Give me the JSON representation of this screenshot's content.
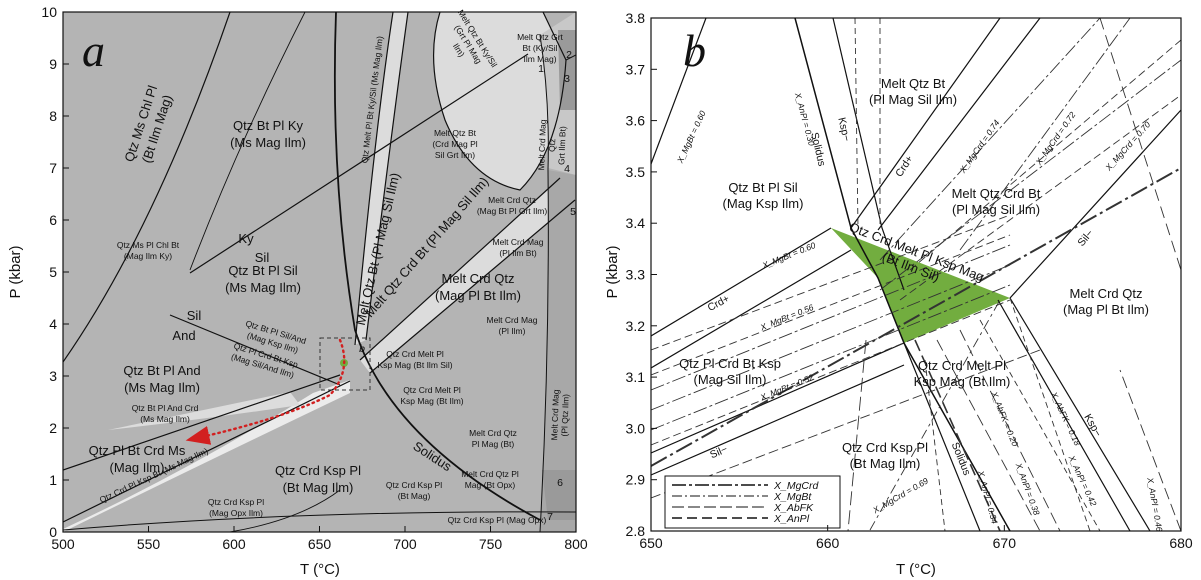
{
  "panel_a": {
    "letter": "a",
    "x_axis": {
      "label": "T (°C)",
      "ticks": [
        "500",
        "550",
        "600",
        "650",
        "700",
        "750",
        "800"
      ]
    },
    "y_axis": {
      "label": "P (kbar)",
      "ticks": [
        "0",
        "1",
        "2",
        "3",
        "4",
        "5",
        "6",
        "7",
        "8",
        "9",
        "10"
      ]
    },
    "fields": {
      "f1": [
        "Qtz Ms Chl Pl",
        "(Bt Ilm Mag)"
      ],
      "f2": [
        "Qtz Bt Pl Ky",
        "(Ms Mag Ilm)"
      ],
      "f3": [
        "Qtz Bt Pl Sil",
        "(Ms Mag Ilm)"
      ],
      "f4": [
        "Qtz Bt Pl And",
        "(Ms Mag Ilm)"
      ],
      "f5": [
        "Qtz Pl Bt Crd Ms",
        "(Mag Ilm)"
      ],
      "f6": [
        "Qtz Crd Ksp Pl",
        "(Bt Mag Ilm)"
      ],
      "f7": [
        "Melt Crd Qtz",
        "(Mag Pl Bt Ilm)"
      ],
      "f8": "Melt Qtz Bt (Pl Mag Sil Ilm)",
      "f9": "Melt Qtz Crd Bt (Pl Mag Sil Ilm)",
      "f10": "Qtz Melt Pl Bt Ky/Sil (Ms Mag Ilm)",
      "s1": [
        "Qtz Ms Pl Chl Bt",
        "(Mag Ilm Ky)"
      ],
      "s2": [
        "Qtz Bt Pl And Crd",
        "(Ms Mag Ilm)"
      ],
      "s3": [
        "Qtz Bt Pl Sil/And",
        "(Mag Ksp Ilm)"
      ],
      "s4": [
        "Qtz Pl Crd Bt Ksp",
        "(Mag Sil/And Ilm)"
      ],
      "s5": [
        "Qtz Crd Melt Pl",
        "Ksp Mag (Bt Ilm Sil)"
      ],
      "s6": [
        "Qtz Crd Melt Pl",
        "Ksp Mag (Bt Ilm)"
      ],
      "s7": [
        "Melt Qtz Bt",
        "(Crd Mag Pl",
        "Sil Grt Ilm)"
      ],
      "s8": [
        "Melt Qtz Bt Ky/Sil",
        "(Grt Pl Mag",
        "Ilm)"
      ],
      "s9": [
        "Melt Qtz Grt",
        "Bt (Ky/Sil",
        "Ilm Mag)"
      ],
      "s10": [
        "Melt Crd Mag",
        "Qtz",
        "Grt Ilm Bt)"
      ],
      "s11": [
        "Melt Crd Qtz",
        "(Mag Bt Pl Grt Ilm)"
      ],
      "s12": [
        "Melt Crd Mag",
        "(Pl Ilm Bt)"
      ],
      "s13": [
        "Melt Crd Mag",
        "(Pl Ilm)"
      ],
      "s14": [
        "Melt Crd Qtz",
        "Pl Mag (Bt)"
      ],
      "s15": [
        "Melt Crd Qtz Pl",
        "Mag (Bt Opx)"
      ],
      "s16": [
        "Qtz Crd Ksp Pl",
        "(Bt Mag)"
      ],
      "s17": [
        "Qtz Crd Ksp Pl",
        "(Mag Opx Ilm)"
      ],
      "s18": "Qtz Crd Ksp Pl (Mag Opx)",
      "s19": "Qtz Crd Pl Ksp Bt (Ms Mag Ilm)",
      "s20": [
        "Melt Crd Mag",
        "(Pl Qtz Ilm)"
      ]
    },
    "line_labels": {
      "ky": "Ky",
      "sil": "Sil",
      "sil2": "Sil",
      "and": "And",
      "solidus": "Solidus",
      "inset": "b"
    },
    "numbers": [
      "1",
      "2",
      "3",
      "4",
      "5",
      "6",
      "7"
    ]
  },
  "panel_b": {
    "letter": "b",
    "x_axis": {
      "label": "T (°C)",
      "ticks": [
        "650",
        "660",
        "670",
        "680"
      ]
    },
    "y_axis": {
      "label": "P (kbar)",
      "ticks": [
        "2.8",
        "2.9",
        "3.0",
        "3.1",
        "3.2",
        "3.3",
        "3.4",
        "3.5",
        "3.6",
        "3.7",
        "3.8"
      ]
    },
    "fields": {
      "b1": [
        "Melt Qtz Bt",
        "(Pl Mag Sil Ilm)"
      ],
      "b2": [
        "Qtz Bt Pl Sil",
        "(Mag Ksp Ilm)"
      ],
      "b3": [
        "Melt Qtz Crd Bt",
        "(Pl Mag Sil Ilm)"
      ],
      "b4": [
        "Qtz Crd Melt Pl Ksp Mag",
        "(Bt Ilm Sil)"
      ],
      "b5": [
        "Melt Crd Qtz",
        "(Mag Pl Bt Ilm)"
      ],
      "b6": [
        "Qtz Pl Crd Bt Ksp",
        "(Mag Sil Ilm)"
      ],
      "b7": [
        "Qtz Crd Melt Pl",
        "Ksp Mag (Bt Ilm)"
      ],
      "b8": [
        "Qtz Crd Ksp Pl",
        "(Bt Mag Ilm)"
      ]
    },
    "line_labels": {
      "solidus_top": "Solidus",
      "ksp_top": "Ksp−",
      "crd": "Crd+",
      "crd2": "Crd+",
      "sil_right": "Sil−",
      "sil_left": "Sil−",
      "solidus_bot": "Solidus",
      "ksp_bot": "Ksp−"
    },
    "isopleth_labels": {
      "mgbt060a": "X_MgBt = 0.60",
      "anpl030": "X_AnPl = 0.30",
      "mgcrd074": "X_MgCrd = 0.74",
      "mgcrd072": "X_MgCrd = 0.72",
      "mgcrd070": "X_MgCrd = 0.70",
      "mgbt060b": "X_MgBt = 0.60",
      "mgbt056": "X_MgBt = 0.56",
      "mgbt052": "X_MgBt = 0.52",
      "abfk020": "X_AbFK = 0.20",
      "abfk018": "X_AbFK = 0.18",
      "mgcrd069": "X_MgCrd = 0.69",
      "anpl034": "X_AnPl = 0.34",
      "anpl038": "X_AnPl = 0.38",
      "anpl042": "X_AnPl = 0.42",
      "anpl046": "X_AnPl = 0.46"
    },
    "legend": [
      "X_MgCrd",
      "X_MgBt",
      "X_AbFK",
      "X_AnPl"
    ]
  },
  "colors": {
    "field_gray": "#b4b4b4",
    "light_field": "#dcdcdc",
    "lighter_field": "#ebebeb",
    "dark_field": "#9a9a9a",
    "green_field": "#72ad3f",
    "path_red": "#d22020"
  }
}
